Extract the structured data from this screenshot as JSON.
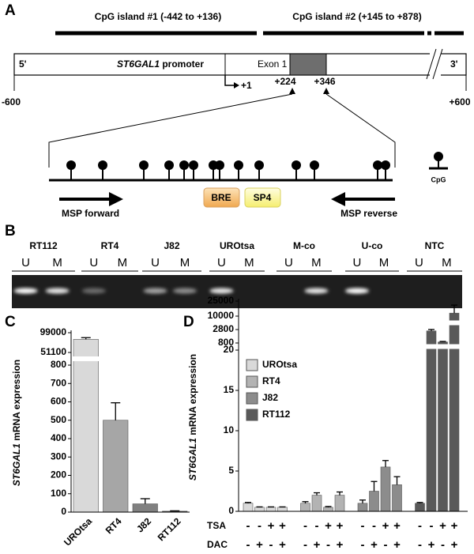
{
  "panel_labels": [
    "A",
    "B",
    "C",
    "D"
  ],
  "diagram": {
    "cpg_islands": [
      "CpG island #1 (-442 to +136)",
      "CpG island #2 (+145 to +878)"
    ],
    "five_prime": "5'",
    "gene": "ST6GAL1",
    "promoter": " promoter",
    "exon": "Exon 1",
    "three_prime": "3'",
    "start": "-600",
    "end": "+600",
    "tss": "+1",
    "pos1": "+224",
    "pos2": "+346",
    "cpg_legend": "CpG",
    "bre": "BRE",
    "sp4": "SP4",
    "forward": "MSP forward",
    "reverse": "MSP reverse"
  },
  "gel": {
    "samples": [
      "RT112",
      "RT4",
      "J82",
      "UROtsa",
      "M-co",
      "U-co",
      "NTC"
    ],
    "lanes": [
      "U",
      "M"
    ]
  },
  "chart_data": [
    {
      "type": "bar",
      "ylabel": {
        "gene": "ST6GAL1",
        "text": " mRNA expression"
      },
      "categories": [
        "UROtsa",
        "RT4",
        "J82",
        "RT112"
      ],
      "values": [
        83000,
        500,
        45,
        5
      ],
      "errors": [
        4000,
        95,
        28,
        2
      ],
      "colors": [
        "#d9d9d9",
        "#a6a6a6",
        "#808080",
        "#595959"
      ],
      "segments": [
        {
          "ylim": [
            0,
            800
          ],
          "yticks": [
            0,
            100,
            200,
            300,
            400,
            500,
            600,
            700,
            800
          ]
        },
        {
          "ylim": [
            51100,
            99000
          ],
          "yticks": [
            51100,
            99000
          ]
        }
      ]
    },
    {
      "type": "grouped-bar",
      "ylabel": {
        "gene": "ST6GAL1",
        "text": " mRNA expression"
      },
      "series": [
        {
          "name": "UROtsa",
          "color": "#d9d9d9",
          "values": [
            1.0,
            0.5,
            0.5,
            0.5
          ],
          "errors": [
            0.1,
            0.05,
            0.05,
            0.05
          ]
        },
        {
          "name": "RT4",
          "color": "#b3b3b3",
          "values": [
            1.0,
            2.0,
            0.5,
            2.0
          ],
          "errors": [
            0.2,
            0.3,
            0.1,
            0.4
          ]
        },
        {
          "name": "J82",
          "color": "#8c8c8c",
          "values": [
            1.0,
            2.5,
            5.5,
            3.3
          ],
          "errors": [
            0.4,
            1.2,
            0.8,
            1.0
          ]
        },
        {
          "name": "RT112",
          "color": "#595959",
          "values": [
            1.0,
            2600,
            950,
            13000
          ],
          "errors": [
            0.1,
            250,
            80,
            8000
          ]
        }
      ],
      "conditions": [
        {
          "name": "TSA",
          "signs": [
            "-",
            "-",
            "+",
            "+"
          ]
        },
        {
          "name": "DAC",
          "signs": [
            "-",
            "+",
            "-",
            "+"
          ]
        }
      ],
      "segments": [
        {
          "ylim": [
            0,
            20
          ],
          "yticks": [
            0,
            5,
            10,
            15,
            20
          ]
        },
        {
          "ylim": [
            800,
            2800
          ],
          "yticks": [
            800,
            2800
          ]
        },
        {
          "ylim": [
            10000,
            25000
          ],
          "yticks": [
            10000,
            25000
          ]
        }
      ]
    }
  ]
}
